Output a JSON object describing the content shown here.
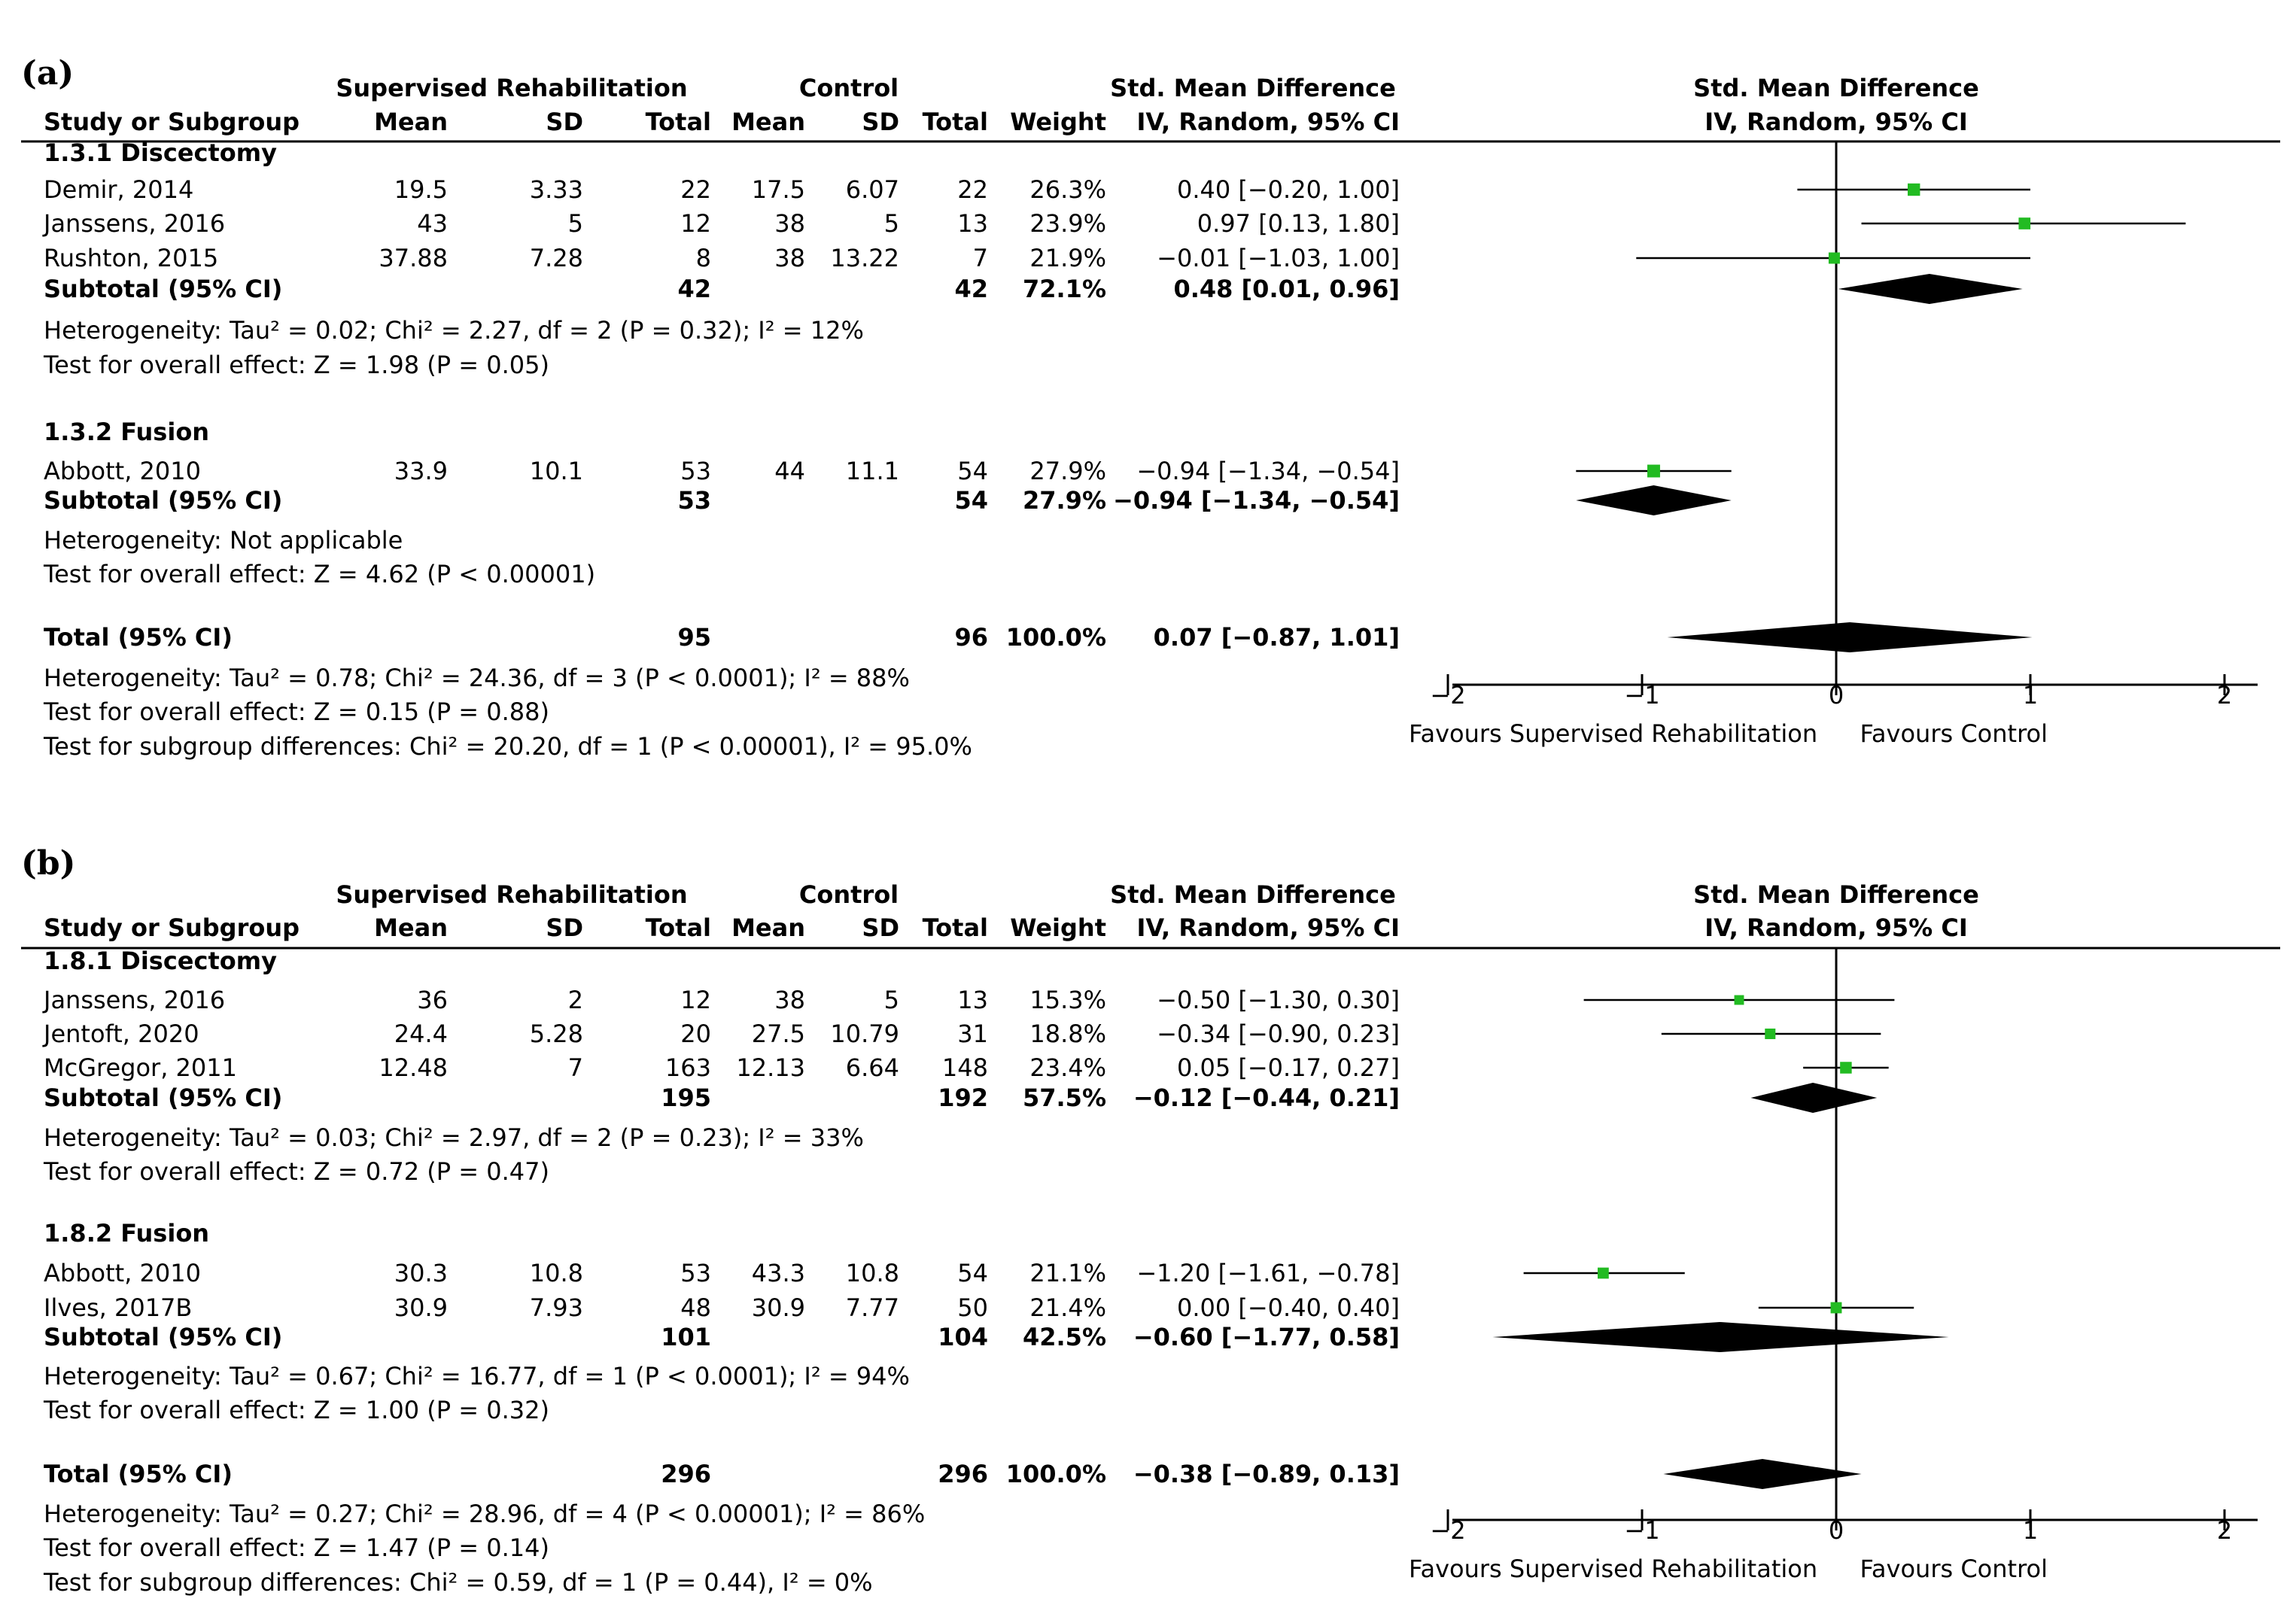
{
  "columns": {
    "study": "Study or Subgroup",
    "group1": "Supervised Rehabilitation",
    "group2": "Control",
    "mean": "Mean",
    "sd": "SD",
    "total": "Total",
    "weight": "Weight",
    "effect_title": "Std. Mean Difference",
    "effect_method": "IV, Random, 95% CI"
  },
  "panels": [
    {
      "label": "(a)",
      "groups": [
        {
          "name": "1.3.1 Discectomy",
          "studies": [
            {
              "study": "Demir, 2014",
              "m1": "19.5",
              "sd1": "3.33",
              "n1": "22",
              "m2": "17.5",
              "sd2": "6.07",
              "n2": "22",
              "weight": "26.3%",
              "ci_text": "0.40 [−0.20, 1.00]"
            },
            {
              "study": "Janssens, 2016",
              "m1": "43",
              "sd1": "5",
              "n1": "12",
              "m2": "38",
              "sd2": "5",
              "n2": "13",
              "weight": "23.9%",
              "ci_text": "0.97 [0.13, 1.80]"
            },
            {
              "study": "Rushton, 2015",
              "m1": "37.88",
              "sd1": "7.28",
              "n1": "8",
              "m2": "38",
              "sd2": "13.22",
              "n2": "7",
              "weight": "21.9%",
              "ci_text": "−0.01 [−1.03, 1.00]"
            }
          ],
          "subtotal": {
            "label": "Subtotal (95% CI)",
            "n1": "42",
            "n2": "42",
            "weight": "72.1%",
            "ci_text": "0.48 [0.01, 0.96]"
          },
          "notes": [
            "Heterogeneity: Tau² = 0.02; Chi² = 2.27, df = 2 (P = 0.32); I² = 12%",
            "Test for overall effect: Z = 1.98 (P = 0.05)"
          ]
        },
        {
          "name": "1.3.2 Fusion",
          "studies": [
            {
              "study": "Abbott, 2010",
              "m1": "33.9",
              "sd1": "10.1",
              "n1": "53",
              "m2": "44",
              "sd2": "11.1",
              "n2": "54",
              "weight": "27.9%",
              "ci_text": "−0.94 [−1.34, −0.54]"
            }
          ],
          "subtotal": {
            "label": "Subtotal (95% CI)",
            "n1": "53",
            "n2": "54",
            "weight": "27.9%",
            "ci_text": "−0.94 [−1.34, −0.54]"
          },
          "notes": [
            "Heterogeneity: Not applicable",
            "Test for overall effect: Z = 4.62 (P < 0.00001)"
          ]
        }
      ],
      "total": {
        "label": "Total (95% CI)",
        "n1": "95",
        "n2": "96",
        "weight": "100.0%",
        "ci_text": "0.07 [−0.87, 1.01]"
      },
      "notes": [
        "Heterogeneity: Tau² = 0.78; Chi² = 24.36, df = 3 (P < 0.0001); I² = 88%",
        "Test for overall effect: Z = 0.15 (P = 0.88)",
        "Test for subgroup differences: Chi² = 20.20, df = 1 (P < 0.00001), I² = 95.0%"
      ],
      "favours_left": "Favours Supervised Rehabilitation",
      "favours_right": "Favours Control"
    },
    {
      "label": "(b)",
      "groups": [
        {
          "name": "1.8.1 Discectomy",
          "studies": [
            {
              "study": "Janssens, 2016",
              "m1": "36",
              "sd1": "2",
              "n1": "12",
              "m2": "38",
              "sd2": "5",
              "n2": "13",
              "weight": "15.3%",
              "ci_text": "−0.50 [−1.30, 0.30]"
            },
            {
              "study": "Jentoft, 2020",
              "m1": "24.4",
              "sd1": "5.28",
              "n1": "20",
              "m2": "27.5",
              "sd2": "10.79",
              "n2": "31",
              "weight": "18.8%",
              "ci_text": "−0.34 [−0.90, 0.23]"
            },
            {
              "study": "McGregor, 2011",
              "m1": "12.48",
              "sd1": "7",
              "n1": "163",
              "m2": "12.13",
              "sd2": "6.64",
              "n2": "148",
              "weight": "23.4%",
              "ci_text": "0.05 [−0.17, 0.27]"
            }
          ],
          "subtotal": {
            "label": "Subtotal (95% CI)",
            "n1": "195",
            "n2": "192",
            "weight": "57.5%",
            "ci_text": "−0.12 [−0.44, 0.21]"
          },
          "notes": [
            "Heterogeneity: Tau² = 0.03; Chi² = 2.97, df = 2 (P = 0.23); I² = 33%",
            "Test for overall effect: Z = 0.72 (P = 0.47)"
          ]
        },
        {
          "name": "1.8.2 Fusion",
          "studies": [
            {
              "study": "Abbott, 2010",
              "m1": "30.3",
              "sd1": "10.8",
              "n1": "53",
              "m2": "43.3",
              "sd2": "10.8",
              "n2": "54",
              "weight": "21.1%",
              "ci_text": "−1.20 [−1.61, −0.78]"
            },
            {
              "study": "Ilves, 2017B",
              "m1": "30.9",
              "sd1": "7.93",
              "n1": "48",
              "m2": "30.9",
              "sd2": "7.77",
              "n2": "50",
              "weight": "21.4%",
              "ci_text": "0.00 [−0.40, 0.40]"
            }
          ],
          "subtotal": {
            "label": "Subtotal (95% CI)",
            "n1": "101",
            "n2": "104",
            "weight": "42.5%",
            "ci_text": "−0.60 [−1.77, 0.58]"
          },
          "notes": [
            "Heterogeneity: Tau² = 0.67; Chi² = 16.77, df = 1 (P < 0.0001); I² = 94%",
            "Test for overall effect: Z = 1.00 (P = 0.32)"
          ]
        }
      ],
      "total": {
        "label": "Total (95% CI)",
        "n1": "296",
        "n2": "296",
        "weight": "100.0%",
        "ci_text": "−0.38 [−0.89, 0.13]"
      },
      "notes": [
        "Heterogeneity: Tau² = 0.27; Chi² = 28.96, df = 4 (P < 0.00001); I² = 86%",
        "Test for overall effect: Z = 1.47 (P = 0.14)",
        "Test for subgroup differences: Chi² = 0.59, df = 1 (P = 0.44), I² = 0%"
      ],
      "favours_left": "Favours Supervised Rehabilitation",
      "favours_right": "Favours Control"
    }
  ],
  "colors": {
    "marker": "#22bb22",
    "diamond": "#000000",
    "line": "#000000"
  },
  "chart_data": [
    {
      "type": "forest",
      "xlim": [
        -2,
        2
      ],
      "xticks": [
        -2,
        -1,
        0,
        1,
        2
      ],
      "tick_labels": [
        "−2",
        "−1",
        "0",
        "1",
        "2"
      ],
      "studies": [
        {
          "name": "Demir, 2014",
          "est": 0.4,
          "lo": -0.2,
          "hi": 1.0,
          "weight": 26.3
        },
        {
          "name": "Janssens, 2016",
          "est": 0.97,
          "lo": 0.13,
          "hi": 1.8,
          "weight": 23.9
        },
        {
          "name": "Rushton, 2015",
          "est": -0.01,
          "lo": -1.03,
          "hi": 1.0,
          "weight": 21.9
        },
        {
          "name": "Abbott, 2010",
          "est": -0.94,
          "lo": -1.34,
          "hi": -0.54,
          "weight": 27.9
        }
      ],
      "diamonds": [
        {
          "name": "Subtotal 1.3.1 Discectomy",
          "est": 0.48,
          "lo": 0.01,
          "hi": 0.96
        },
        {
          "name": "Subtotal 1.3.2 Fusion",
          "est": -0.94,
          "lo": -1.34,
          "hi": -0.54
        },
        {
          "name": "Total",
          "est": 0.07,
          "lo": -0.87,
          "hi": 1.01
        }
      ]
    },
    {
      "type": "forest",
      "xlim": [
        -2,
        2
      ],
      "xticks": [
        -2,
        -1,
        0,
        1,
        2
      ],
      "tick_labels": [
        "−2",
        "−1",
        "0",
        "1",
        "2"
      ],
      "studies": [
        {
          "name": "Janssens, 2016",
          "est": -0.5,
          "lo": -1.3,
          "hi": 0.3,
          "weight": 15.3
        },
        {
          "name": "Jentoft, 2020",
          "est": -0.34,
          "lo": -0.9,
          "hi": 0.23,
          "weight": 18.8
        },
        {
          "name": "McGregor, 2011",
          "est": 0.05,
          "lo": -0.17,
          "hi": 0.27,
          "weight": 23.4
        },
        {
          "name": "Abbott, 2010",
          "est": -1.2,
          "lo": -1.61,
          "hi": -0.78,
          "weight": 21.1
        },
        {
          "name": "Ilves, 2017B",
          "est": 0.0,
          "lo": -0.4,
          "hi": 0.4,
          "weight": 21.4
        }
      ],
      "diamonds": [
        {
          "name": "Subtotal 1.8.1 Discectomy",
          "est": -0.12,
          "lo": -0.44,
          "hi": 0.21
        },
        {
          "name": "Subtotal 1.8.2 Fusion",
          "est": -0.6,
          "lo": -1.77,
          "hi": 0.58
        },
        {
          "name": "Total",
          "est": -0.38,
          "lo": -0.89,
          "hi": 0.13
        }
      ]
    }
  ]
}
